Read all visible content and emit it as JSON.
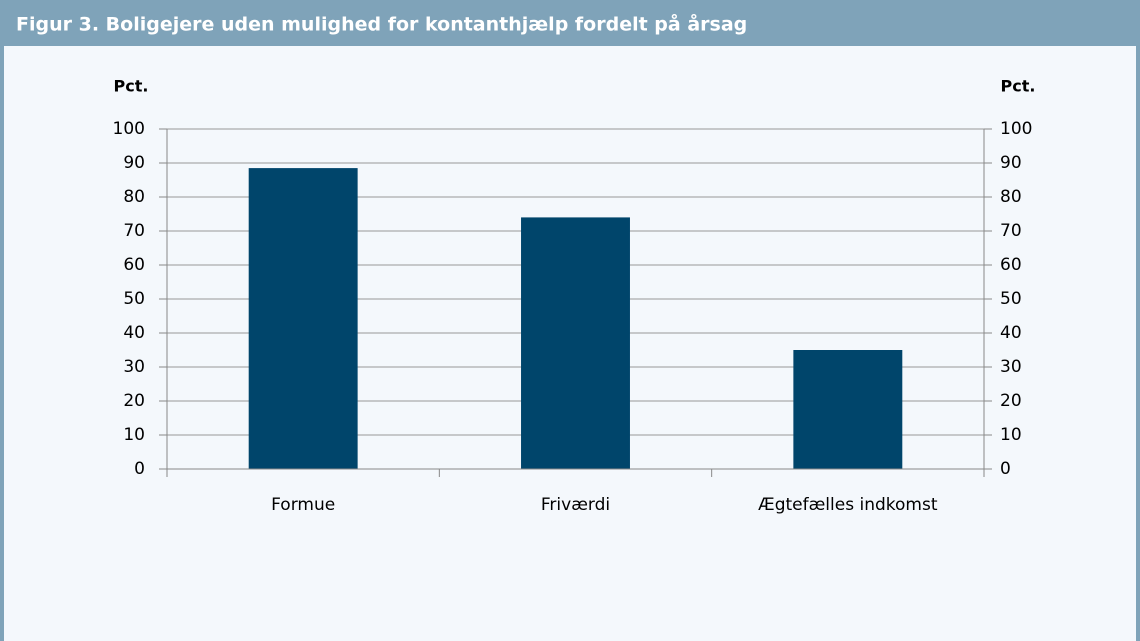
{
  "chart_data": {
    "type": "bar",
    "title": "Figur 3. Boligejere uden mulighed for kontanthjælp fordelt på årsag",
    "y_label": "Pct.",
    "y2_label": "Pct.",
    "categories": [
      "Formue",
      "Friværdi",
      "Ægtefælles indkomst"
    ],
    "values": [
      88.5,
      74,
      35
    ],
    "color": "#00456b",
    "ylim": [
      0,
      100
    ],
    "yticks": [
      0,
      10,
      20,
      30,
      40,
      50,
      60,
      70,
      80,
      90,
      100
    ],
    "y2lim": [
      0,
      100
    ],
    "y2ticks": [
      0,
      10,
      20,
      30,
      40,
      50,
      60,
      70,
      80,
      90,
      100
    ],
    "grid": true
  }
}
